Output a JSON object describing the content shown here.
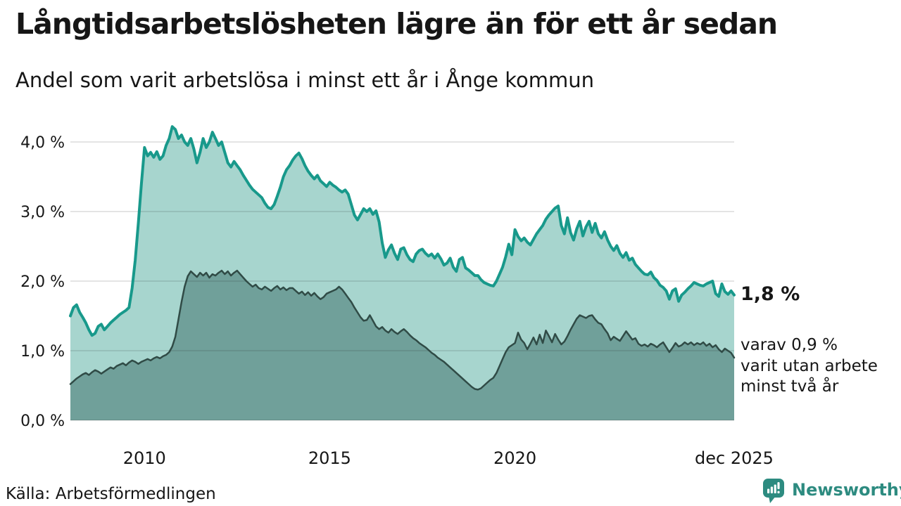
{
  "header": {
    "title": "Långtidsarbetslösheten lägre än för ett år sedan",
    "subtitle": "Andel som varit arbetslösa i minst ett år i Ånge kommun"
  },
  "annotations": {
    "latest_value": "1,8 %",
    "secondary_line1": "varav 0,9 %",
    "secondary_line2": "varit utan arbete",
    "secondary_line3": "minst två år"
  },
  "footer": {
    "source": "Källa: Arbetsförmedlingen",
    "brand": "Newsworthy"
  },
  "colors": {
    "accent_teal": "#18998b",
    "light_fill": "#a7d5ce",
    "dark_fill": "#70a09a",
    "dark_line": "#304b46",
    "gridline": "rgba(30,30,30,0.12)",
    "text": "#161616",
    "brand_teal": "#2d8b80"
  },
  "chart_data": {
    "type": "area",
    "title": "Långtidsarbetslösheten lägre än för ett år sedan",
    "subtitle": "Andel som varit arbetslösa i minst ett år i Ånge kommun",
    "unit": "%",
    "frequency": "monthly",
    "x_start": "2008-01",
    "x_end": "2025-12",
    "ylim": [
      0,
      4.35
    ],
    "grid": true,
    "legend_position": "end-of-line annotations",
    "yticks": [
      {
        "value": 4.0,
        "label": "4,0 %"
      },
      {
        "value": 3.0,
        "label": "3,0 %"
      },
      {
        "value": 2.0,
        "label": "2,0 %"
      },
      {
        "value": 1.0,
        "label": "1,0 %"
      },
      {
        "value": 0.0,
        "label": "0,0 %"
      }
    ],
    "xticks": [
      {
        "label": "2010",
        "month_index": 24
      },
      {
        "label": "2015",
        "month_index": 84
      },
      {
        "label": "2020",
        "month_index": 144
      },
      {
        "label": "dec 2025",
        "month_index": 215
      }
    ],
    "series": [
      {
        "name": "Arbetslösa minst ett år",
        "end_label": "1,8 %",
        "line_color": "#18998b",
        "fill_color": "#a7d5ce",
        "line_width": 4,
        "values": [
          1.5,
          1.62,
          1.66,
          1.55,
          1.48,
          1.4,
          1.3,
          1.22,
          1.25,
          1.35,
          1.38,
          1.3,
          1.35,
          1.4,
          1.44,
          1.48,
          1.52,
          1.55,
          1.58,
          1.62,
          1.9,
          2.3,
          2.83,
          3.4,
          3.92,
          3.8,
          3.85,
          3.78,
          3.86,
          3.75,
          3.8,
          3.95,
          4.05,
          4.22,
          4.18,
          4.05,
          4.1,
          4.0,
          3.95,
          4.05,
          3.9,
          3.7,
          3.85,
          4.05,
          3.92,
          4.0,
          4.14,
          4.05,
          3.95,
          4.0,
          3.85,
          3.7,
          3.64,
          3.72,
          3.66,
          3.6,
          3.52,
          3.45,
          3.38,
          3.32,
          3.28,
          3.24,
          3.2,
          3.12,
          3.06,
          3.04,
          3.1,
          3.22,
          3.35,
          3.5,
          3.6,
          3.66,
          3.74,
          3.8,
          3.84,
          3.76,
          3.66,
          3.58,
          3.52,
          3.47,
          3.52,
          3.44,
          3.4,
          3.36,
          3.42,
          3.38,
          3.35,
          3.31,
          3.28,
          3.31,
          3.25,
          3.1,
          2.95,
          2.88,
          2.96,
          3.04,
          3.0,
          3.04,
          2.96,
          3.01,
          2.85,
          2.55,
          2.34,
          2.45,
          2.52,
          2.4,
          2.31,
          2.46,
          2.48,
          2.38,
          2.31,
          2.28,
          2.39,
          2.44,
          2.46,
          2.4,
          2.36,
          2.39,
          2.33,
          2.39,
          2.32,
          2.23,
          2.26,
          2.33,
          2.2,
          2.14,
          2.31,
          2.34,
          2.19,
          2.16,
          2.12,
          2.08,
          2.08,
          2.02,
          1.98,
          1.96,
          1.94,
          1.93,
          2.0,
          2.1,
          2.2,
          2.35,
          2.53,
          2.38,
          2.74,
          2.64,
          2.58,
          2.62,
          2.56,
          2.52,
          2.6,
          2.68,
          2.74,
          2.8,
          2.89,
          2.95,
          3.0,
          3.05,
          3.08,
          2.8,
          2.68,
          2.91,
          2.7,
          2.59,
          2.75,
          2.86,
          2.65,
          2.78,
          2.86,
          2.7,
          2.83,
          2.68,
          2.62,
          2.71,
          2.59,
          2.5,
          2.44,
          2.51,
          2.4,
          2.34,
          2.41,
          2.3,
          2.33,
          2.24,
          2.19,
          2.14,
          2.1,
          2.09,
          2.13,
          2.05,
          2.01,
          1.94,
          1.91,
          1.86,
          1.74,
          1.86,
          1.89,
          1.71,
          1.8,
          1.84,
          1.89,
          1.93,
          1.98,
          1.96,
          1.94,
          1.93,
          1.96,
          1.98,
          2.0,
          1.82,
          1.78,
          1.96,
          1.85,
          1.81,
          1.86,
          1.8
        ]
      },
      {
        "name": "Arbetslösa minst två år",
        "end_label": "varav 0,9 % varit utan arbete minst två år",
        "line_color": "#304b46",
        "fill_color": "#70a09a",
        "line_width": 2.5,
        "values": [
          0.52,
          0.56,
          0.6,
          0.63,
          0.66,
          0.68,
          0.65,
          0.69,
          0.72,
          0.7,
          0.67,
          0.7,
          0.73,
          0.76,
          0.74,
          0.78,
          0.8,
          0.82,
          0.79,
          0.83,
          0.86,
          0.84,
          0.81,
          0.84,
          0.86,
          0.88,
          0.86,
          0.89,
          0.91,
          0.89,
          0.92,
          0.94,
          0.98,
          1.06,
          1.2,
          1.45,
          1.7,
          1.92,
          2.07,
          2.14,
          2.1,
          2.06,
          2.12,
          2.08,
          2.12,
          2.05,
          2.1,
          2.08,
          2.12,
          2.15,
          2.1,
          2.14,
          2.08,
          2.12,
          2.15,
          2.1,
          2.05,
          2.0,
          1.96,
          1.92,
          1.95,
          1.9,
          1.88,
          1.92,
          1.89,
          1.86,
          1.9,
          1.93,
          1.88,
          1.91,
          1.87,
          1.9,
          1.9,
          1.86,
          1.82,
          1.85,
          1.8,
          1.84,
          1.79,
          1.83,
          1.78,
          1.74,
          1.77,
          1.82,
          1.84,
          1.86,
          1.88,
          1.92,
          1.88,
          1.82,
          1.76,
          1.7,
          1.62,
          1.55,
          1.48,
          1.43,
          1.44,
          1.51,
          1.43,
          1.35,
          1.31,
          1.34,
          1.29,
          1.26,
          1.31,
          1.27,
          1.24,
          1.28,
          1.31,
          1.27,
          1.22,
          1.18,
          1.15,
          1.11,
          1.08,
          1.05,
          1.01,
          0.97,
          0.94,
          0.9,
          0.87,
          0.84,
          0.8,
          0.76,
          0.72,
          0.68,
          0.64,
          0.6,
          0.56,
          0.52,
          0.48,
          0.45,
          0.44,
          0.46,
          0.5,
          0.54,
          0.58,
          0.61,
          0.68,
          0.78,
          0.88,
          0.98,
          1.05,
          1.08,
          1.11,
          1.26,
          1.16,
          1.11,
          1.02,
          1.1,
          1.19,
          1.09,
          1.23,
          1.11,
          1.29,
          1.21,
          1.12,
          1.24,
          1.16,
          1.09,
          1.13,
          1.21,
          1.3,
          1.38,
          1.46,
          1.51,
          1.49,
          1.47,
          1.5,
          1.51,
          1.45,
          1.4,
          1.38,
          1.31,
          1.25,
          1.15,
          1.2,
          1.17,
          1.14,
          1.21,
          1.28,
          1.22,
          1.16,
          1.18,
          1.1,
          1.07,
          1.09,
          1.06,
          1.1,
          1.08,
          1.05,
          1.09,
          1.12,
          1.05,
          0.98,
          1.04,
          1.11,
          1.06,
          1.08,
          1.12,
          1.09,
          1.12,
          1.08,
          1.11,
          1.09,
          1.12,
          1.07,
          1.1,
          1.05,
          1.08,
          1.02,
          0.98,
          1.03,
          1.0,
          0.97,
          0.9
        ]
      }
    ]
  }
}
